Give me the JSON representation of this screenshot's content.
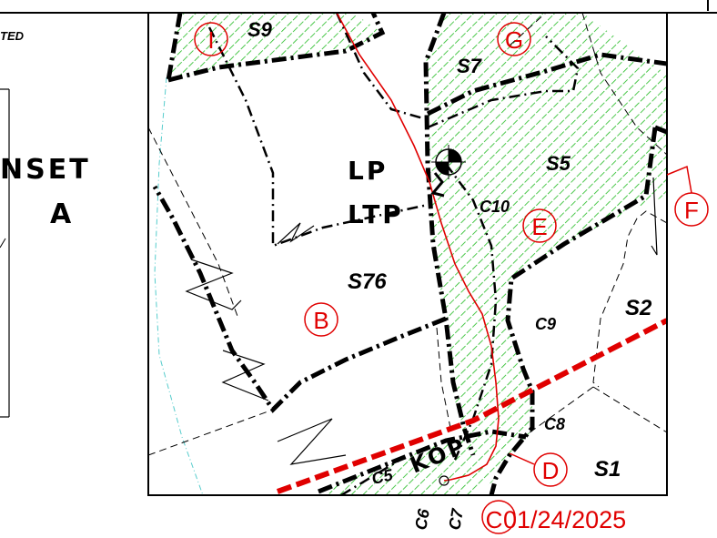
{
  "header_text": "TED",
  "inset": {
    "line1": "NSET",
    "line2": "A"
  },
  "symbols": {
    "lp": "LP",
    "ltp": "LTP",
    "kop": "KOP"
  },
  "sections": {
    "s9": "S9",
    "s7": "S7",
    "s5": "S5",
    "s76": "S76",
    "s2": "S2",
    "s1": "S1"
  },
  "courses": {
    "c10": "C10",
    "c9": "C9",
    "c8": "C8",
    "c5": "C5",
    "c6": "C6",
    "c7": "C7"
  },
  "markers": {
    "i": "I",
    "g": "G",
    "f": "F",
    "e": "E",
    "b": "B",
    "d": "D",
    "c": "C"
  },
  "date": "01/24/2025",
  "colors": {
    "hatch": "#22bb22",
    "red": "#e00000",
    "cyan": "#55cccc"
  }
}
